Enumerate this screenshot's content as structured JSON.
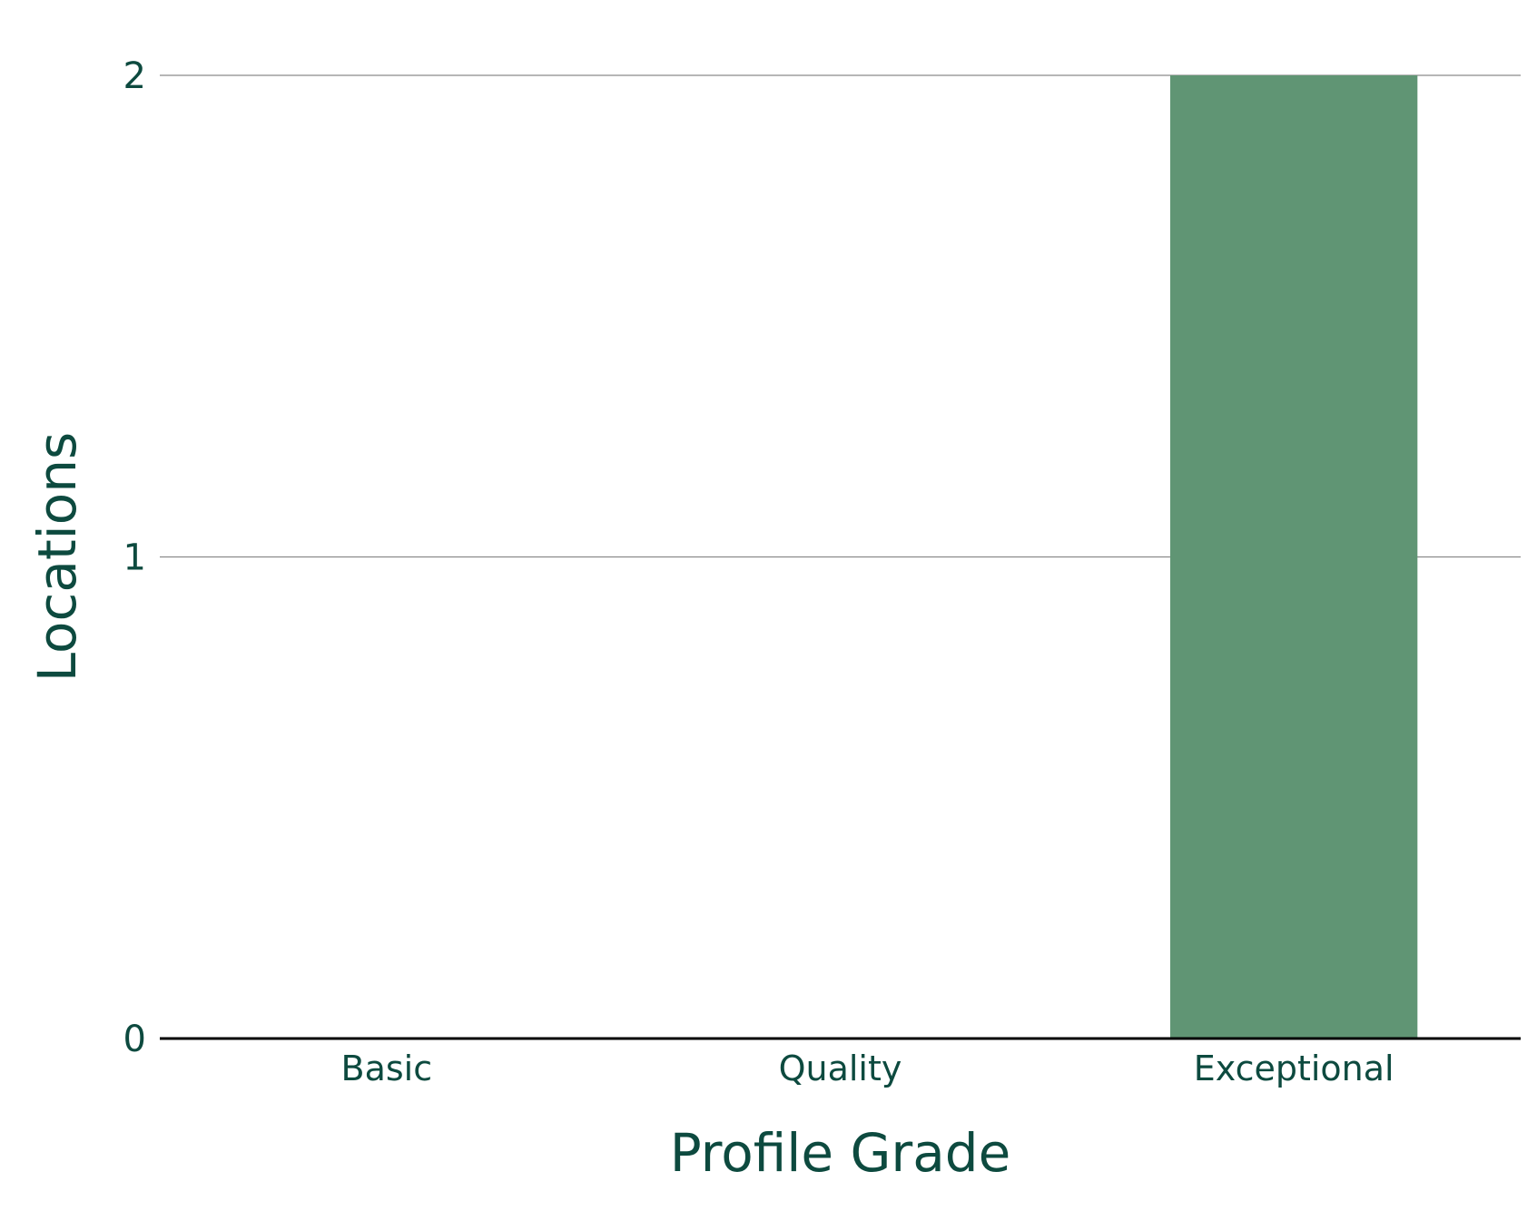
{
  "chart_data": {
    "type": "bar",
    "categories": [
      "Basic",
      "Quality",
      "Exceptional"
    ],
    "values": [
      0,
      0,
      2
    ],
    "title": "",
    "xlabel": "Profile Grade",
    "ylabel": "Locations",
    "ylim": [
      0,
      2
    ],
    "yticks": [
      "0",
      "1",
      "2"
    ],
    "grid": true,
    "legend": "none"
  },
  "colors": {
    "bar": "#609574",
    "text": "#0d4a3f",
    "grid": "#8a8a8a",
    "baseline": "#000000"
  }
}
